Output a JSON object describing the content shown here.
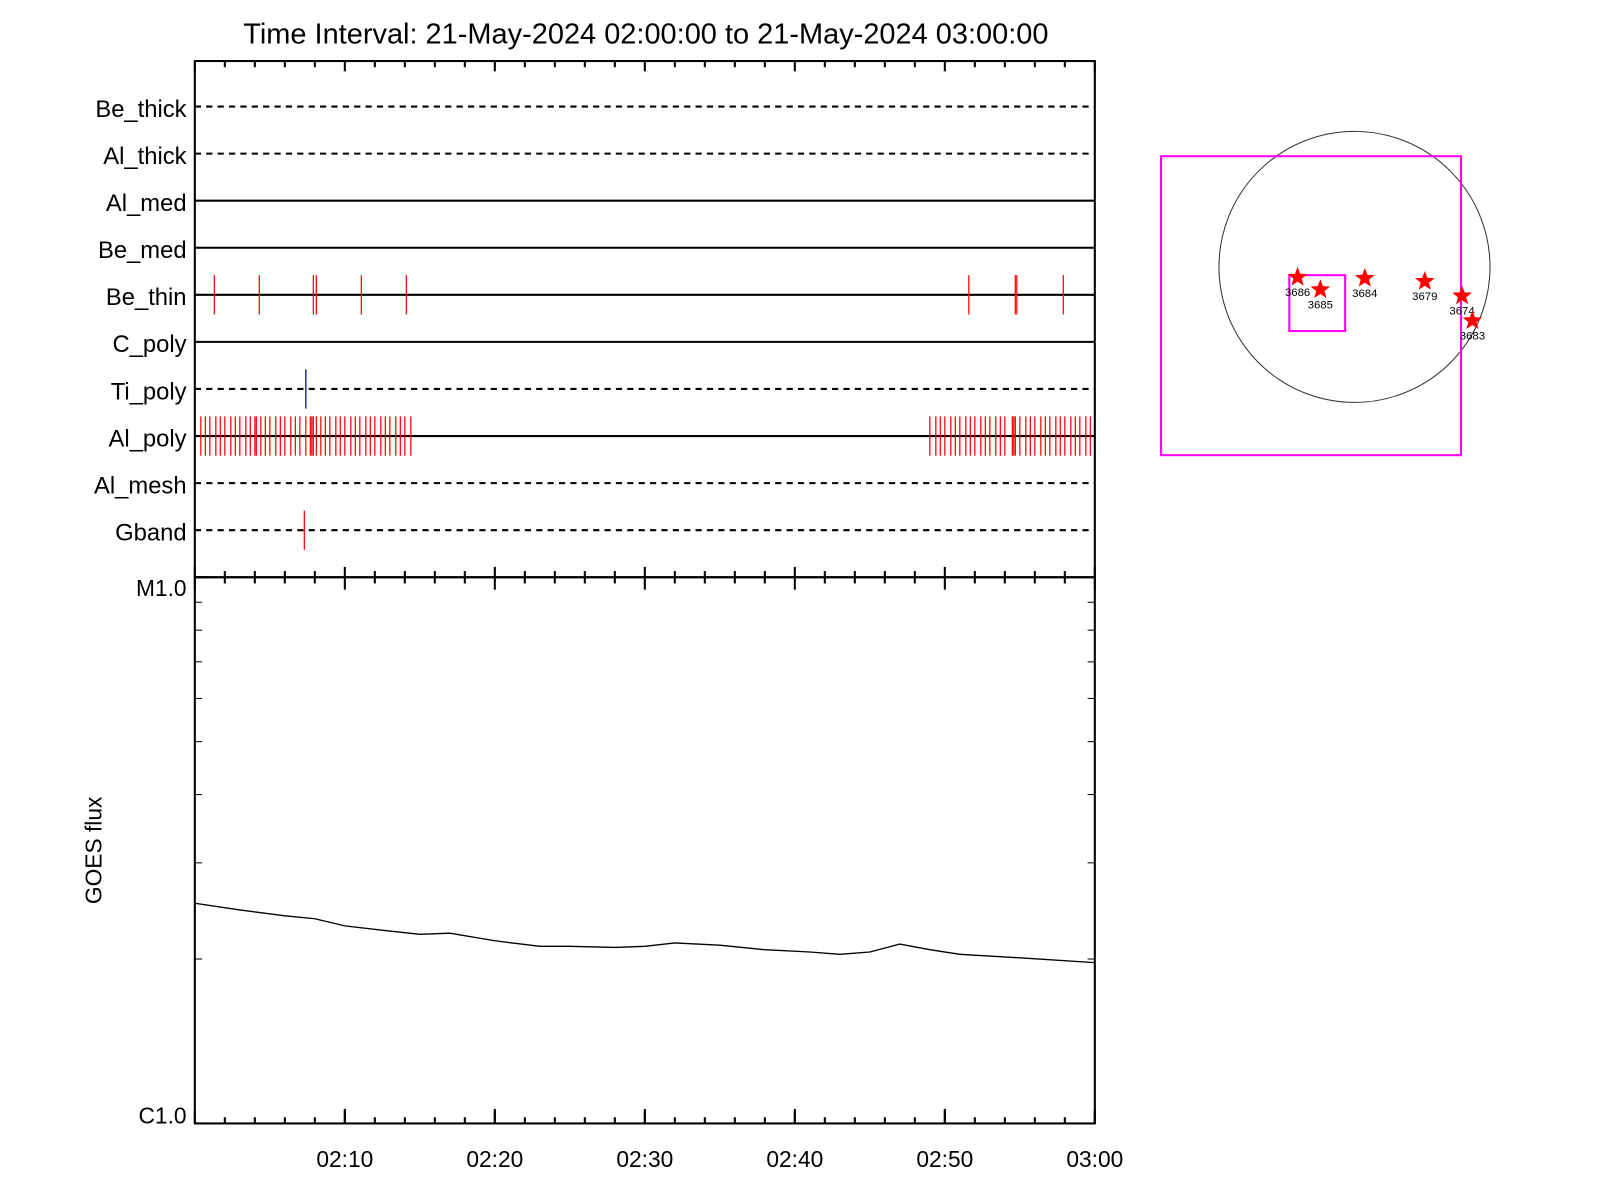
{
  "chart_data": [
    {
      "type": "timeline",
      "title": "Time Interval: 21-May-2024 02:00:00 to 21-May-2024 03:00:00",
      "xlim": [
        0,
        60
      ],
      "rows": [
        {
          "name": "Be_thick",
          "style": "dashed",
          "color": "#ff0000",
          "events": []
        },
        {
          "name": "Al_thick",
          "style": "dashed",
          "color": "#ff0000",
          "events": []
        },
        {
          "name": "Al_med",
          "style": "solid",
          "color": "#ff0000",
          "events": []
        },
        {
          "name": "Be_med",
          "style": "solid",
          "color": "#ff0000",
          "events": []
        },
        {
          "name": "Be_thin",
          "style": "solid",
          "color": "#ff0000",
          "events": [
            1.3,
            4.3,
            7.9,
            8.1,
            11.1,
            14.1,
            51.6,
            54.7,
            54.8,
            57.9
          ]
        },
        {
          "name": "C_poly",
          "style": "solid",
          "color": "#ff0000",
          "events": []
        },
        {
          "name": "Ti_poly",
          "style": "dashed",
          "color": "#000080",
          "events": [
            7.4
          ]
        },
        {
          "name": "Al_poly",
          "style": "solid",
          "color": "#ff0000",
          "events": [
            0.4,
            0.7,
            1.0,
            1.4,
            1.7,
            2.0,
            2.4,
            2.7,
            3.0,
            3.4,
            3.7,
            4.0,
            4.1,
            4.4,
            4.7,
            5.0,
            5.4,
            5.7,
            6.0,
            6.4,
            6.7,
            7.0,
            7.4,
            7.7,
            7.8,
            7.9,
            8.1,
            8.4,
            8.7,
            9.0,
            9.4,
            9.7,
            10.0,
            10.4,
            10.7,
            11.0,
            11.4,
            11.7,
            12.0,
            12.4,
            12.7,
            13.0,
            13.4,
            13.7,
            14.0,
            14.4,
            49.0,
            49.4,
            49.7,
            50.0,
            50.4,
            50.7,
            51.0,
            51.4,
            51.7,
            52.0,
            52.4,
            52.7,
            53.0,
            53.4,
            53.7,
            54.0,
            54.5,
            54.6,
            54.7,
            55.0,
            55.4,
            55.7,
            56.0,
            56.4,
            56.7,
            57.0,
            57.4,
            57.7,
            58.0,
            58.4,
            58.7,
            59.0,
            59.4,
            59.7
          ]
        },
        {
          "name": "Al_mesh",
          "style": "dashed",
          "color": "#ff0000",
          "events": []
        },
        {
          "name": "Gband",
          "style": "dashed",
          "color": "#ff0000",
          "events": [
            7.3
          ]
        }
      ]
    },
    {
      "type": "line",
      "ylabel": "GOES flux",
      "log_scale": true,
      "color": "#000000",
      "x": [
        0,
        3,
        6,
        8,
        10,
        13,
        15,
        17,
        20,
        23,
        25,
        28,
        30,
        32,
        35,
        38,
        41,
        43,
        45,
        47,
        49,
        51,
        55,
        60
      ],
      "values": [
        2.53e-06,
        2.46e-06,
        2.4e-06,
        2.37e-06,
        2.3e-06,
        2.25e-06,
        2.22e-06,
        2.23e-06,
        2.16e-06,
        2.11e-06,
        2.11e-06,
        2.1e-06,
        2.11e-06,
        2.14e-06,
        2.12e-06,
        2.08e-06,
        2.06e-06,
        2.04e-06,
        2.06e-06,
        2.13e-06,
        2.08e-06,
        2.04e-06,
        2.01e-06,
        1.97e-06
      ],
      "xlim": [
        0,
        60
      ],
      "xticks": [
        {
          "value": 10,
          "label": "02:10"
        },
        {
          "value": 20,
          "label": "02:20"
        },
        {
          "value": 30,
          "label": "02:30"
        },
        {
          "value": 40,
          "label": "02:40"
        },
        {
          "value": 50,
          "label": "02:50"
        },
        {
          "value": 60,
          "label": "03:00"
        }
      ],
      "ylim": [
        1e-06,
        1e-05
      ],
      "yticks": [
        {
          "value": 1e-05,
          "label": "M1.0"
        },
        {
          "value": 1e-06,
          "label": "C1.0"
        }
      ],
      "yminorticks": [
        2e-06,
        3e-06,
        4e-06,
        5e-06,
        6e-06,
        7e-06,
        8e-06,
        9e-06
      ]
    }
  ],
  "map": {
    "regions": [
      "3686",
      "3685",
      "3684",
      "3679",
      "3674",
      "3683"
    ]
  }
}
